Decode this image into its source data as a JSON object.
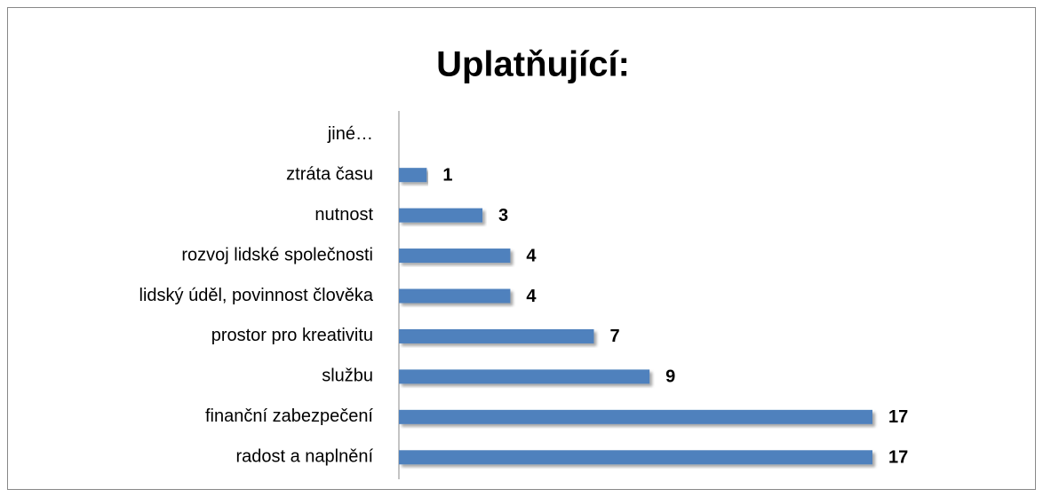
{
  "chart_data": {
    "type": "barh",
    "title": "Uplatňující:",
    "categories": [
      "jiné…",
      "ztráta času",
      "nutnost",
      "rozvoj lidské společnosti",
      "lidský úděl, povinnost člověka",
      "prostor pro kreativitu",
      "službu",
      "finanční zabezpečení",
      "radost a naplnění"
    ],
    "values": [
      null,
      1,
      3,
      4,
      4,
      7,
      9,
      17,
      17
    ],
    "color": "#4f81bd"
  }
}
